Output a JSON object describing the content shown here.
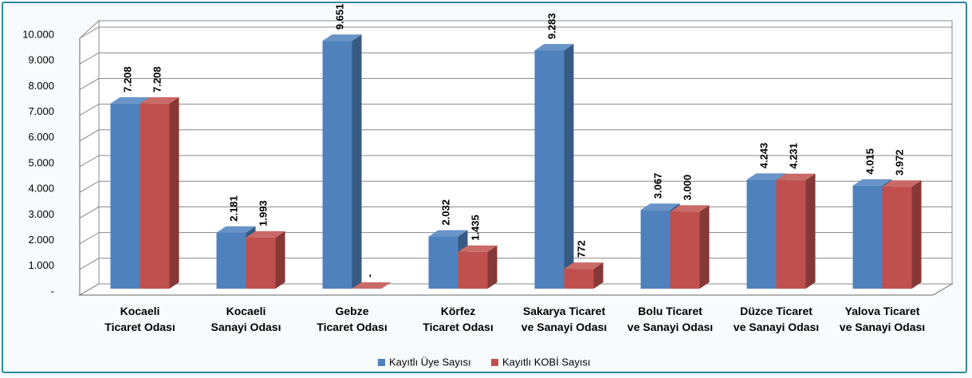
{
  "chart_data": {
    "type": "bar3d",
    "categories": [
      "Kocaeli\nTicaret Odası",
      "Kocaeli\nSanayi Odası",
      "Gebze\nTicaret Odası",
      "Körfez\nTicaret Odası",
      "Sakarya Ticaret\nve Sanayi Odası",
      "Bolu Ticaret\nve Sanayi Odası",
      "Düzce Ticaret\nve Sanayi Odası",
      "Yalova Ticaret\nve Sanayi Odası"
    ],
    "series": [
      {
        "name": "Kayıtlı Üye Sayısı",
        "color": "#4f81bd",
        "values": [
          7208,
          2181,
          9651,
          2032,
          9283,
          3067,
          4243,
          4015
        ],
        "value_labels": [
          "7.208",
          "2.181",
          "9.651",
          "2.032",
          "9.283",
          "3.067",
          "4.243",
          "4.015"
        ]
      },
      {
        "name": "Kayıtlı KOBİ Sayısı",
        "color": "#c0504d",
        "values": [
          7208,
          1993,
          0,
          1435,
          772,
          3000,
          4231,
          3972
        ],
        "value_labels": [
          "7.208",
          "1.993",
          "-",
          "1.435",
          "772",
          "3.000",
          "4.231",
          "3.972"
        ]
      }
    ],
    "ylim": [
      0,
      10000
    ],
    "yticks": [
      {
        "value": 0,
        "label": "-"
      },
      {
        "value": 1000,
        "label": "1.000"
      },
      {
        "value": 2000,
        "label": "2.000"
      },
      {
        "value": 3000,
        "label": "3.000"
      },
      {
        "value": 4000,
        "label": "4.000"
      },
      {
        "value": 5000,
        "label": "5.000"
      },
      {
        "value": 6000,
        "label": "6.000"
      },
      {
        "value": 7000,
        "label": "7.000"
      },
      {
        "value": 8000,
        "label": "8.000"
      },
      {
        "value": 9000,
        "label": "9.000"
      },
      {
        "value": 10000,
        "label": "10.000"
      }
    ],
    "grid": true,
    "legend": "bottom"
  }
}
